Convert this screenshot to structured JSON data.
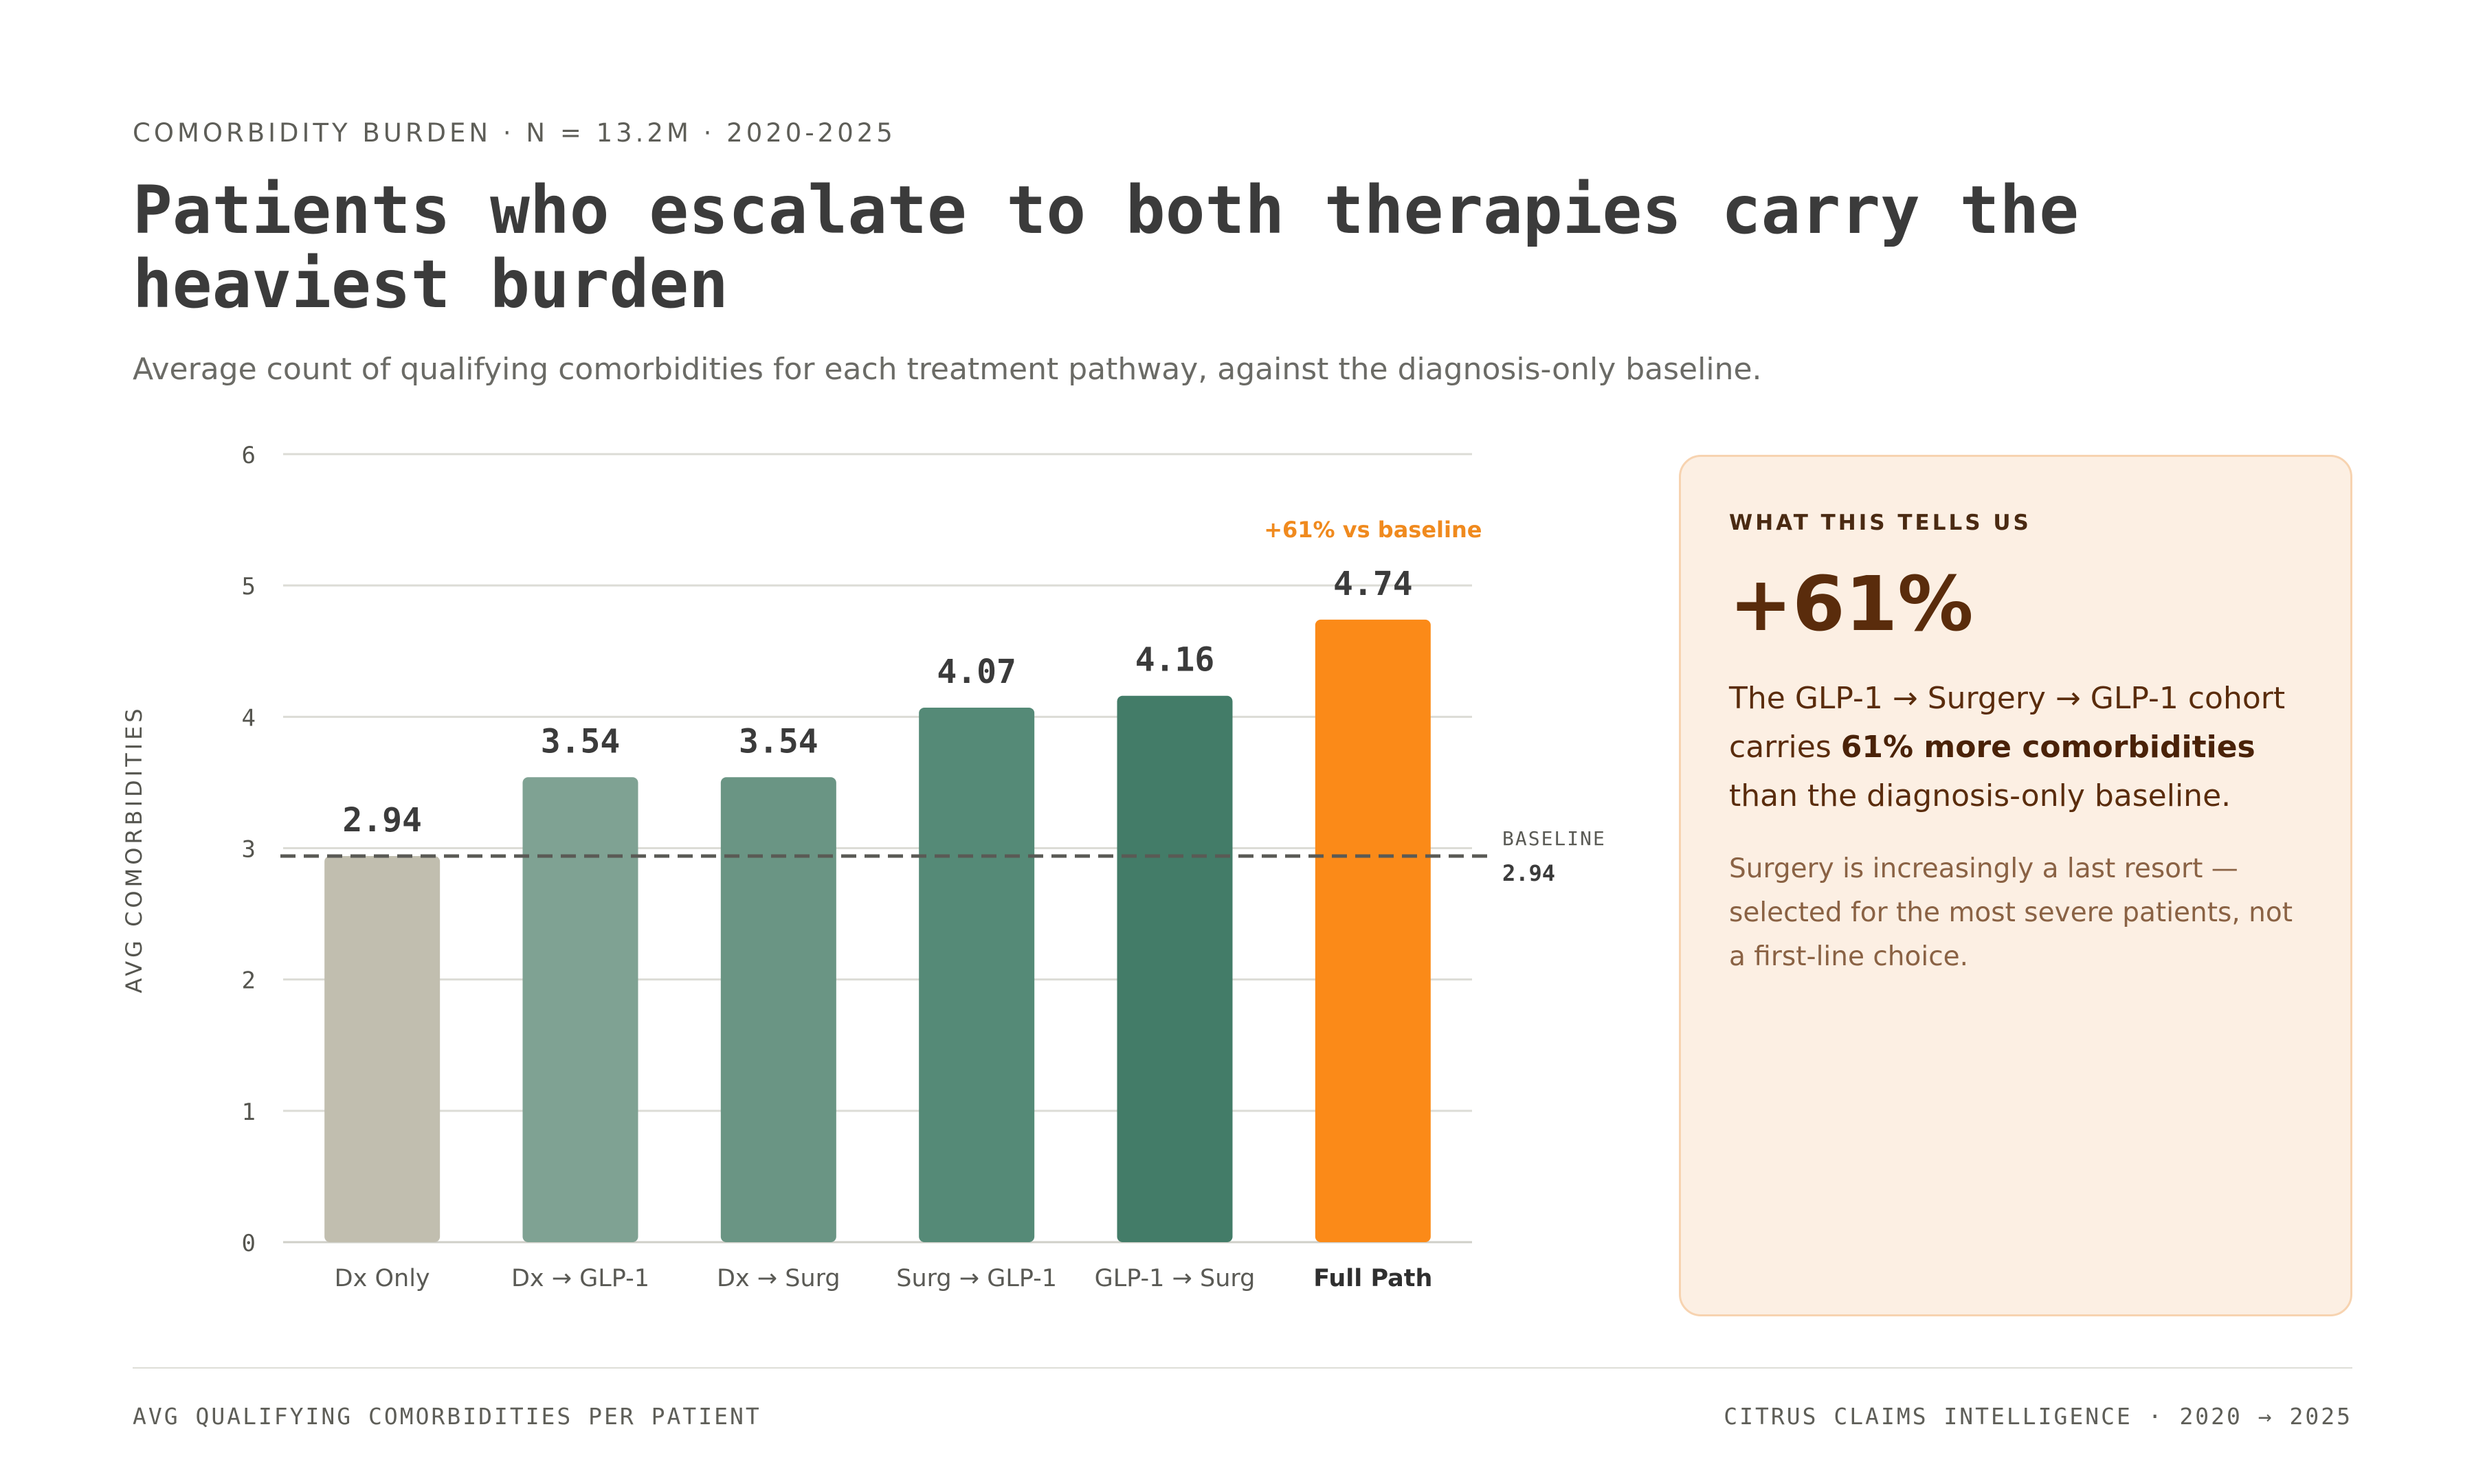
{
  "header": {
    "eyebrow": "COMORBIDITY BURDEN · N = 13.2M · 2020-2025",
    "title": "Patients who escalate to both therapies carry the heaviest burden",
    "subtitle": "Average count of qualifying comorbidities for each treatment pathway, against the diagnosis-only baseline."
  },
  "chart_data": {
    "type": "bar",
    "categories": [
      "Dx Only",
      "Dx → GLP-1",
      "Dx → Surg",
      "Surg → GLP-1",
      "GLP-1 → Surg",
      "Full Path"
    ],
    "values": [
      2.94,
      3.54,
      3.54,
      4.07,
      4.16,
      4.74
    ],
    "value_labels": [
      "2.94",
      "3.54",
      "3.54",
      "4.07",
      "4.16",
      "4.74"
    ],
    "colors": [
      "#c1beaf",
      "#7fa293",
      "#6a9584",
      "#558a77",
      "#437c68",
      "#fb8a18"
    ],
    "ylabel": "AVG COMORBIDITIES",
    "ylim": [
      0,
      6
    ],
    "yticks": [
      0,
      1,
      2,
      3,
      4,
      5,
      6
    ],
    "grid": true,
    "baseline": {
      "label": "BASELINE",
      "value": 2.94,
      "value_label": "2.94",
      "style": "dashed"
    },
    "annotation": {
      "text": "+61% vs baseline",
      "category": "Full Path",
      "color": "#f08a1e"
    },
    "highlight_category": "Full Path"
  },
  "panel": {
    "eyebrow": "WHAT THIS TELLS US",
    "big_stat": "+61%",
    "body_pre": "The GLP-1 → Surgery → GLP-1 cohort carries ",
    "body_bold": "61% more comorbidities",
    "body_post": " than the diagnosis-only baseline.",
    "note": "Surgery is increasingly a last resort — selected for the most severe patients, not a first-line choice."
  },
  "footer": {
    "left": "AVG QUALIFYING COMORBIDITIES PER PATIENT",
    "right": "CITRUS CLAIMS INTELLIGENCE · 2020 → 2025"
  }
}
